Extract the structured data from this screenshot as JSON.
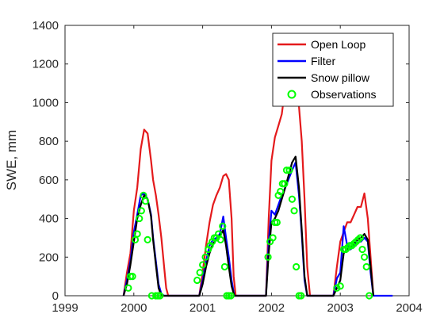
{
  "chart_data": {
    "type": "line",
    "title": "",
    "xlabel": "",
    "ylabel": "SWE, mm",
    "xlim": [
      1999,
      2004
    ],
    "ylim": [
      0,
      1400
    ],
    "xticks": [
      "1999",
      "2000",
      "2001",
      "2002",
      "2003",
      "2004"
    ],
    "yticks": [
      "0",
      "200",
      "400",
      "600",
      "800",
      "1000",
      "1200",
      "1400"
    ],
    "grid": false,
    "legend_position": "top-right",
    "series": [
      {
        "name": "Open Loop",
        "color": "#e41a1c",
        "x": [
          1999.85,
          1999.9,
          1999.95,
          2000.0,
          2000.05,
          2000.1,
          2000.15,
          2000.2,
          2000.25,
          2000.28,
          2000.32,
          2000.36,
          2000.4,
          2000.44,
          2000.47,
          2000.5,
          2000.95,
          2001.0,
          2001.05,
          2001.1,
          2001.15,
          2001.2,
          2001.25,
          2001.3,
          2001.34,
          2001.38,
          2001.42,
          2001.45,
          2001.48,
          2001.92,
          2001.96,
          2002.0,
          2002.05,
          2002.1,
          2002.15,
          2002.2,
          2002.3,
          2002.35,
          2002.4,
          2002.44,
          2002.48,
          2002.52,
          2002.56,
          2002.9,
          2002.95,
          2003.0,
          2003.05,
          2003.1,
          2003.15,
          2003.2,
          2003.25,
          2003.3,
          2003.35,
          2003.4,
          2003.44,
          2003.48
        ],
        "y": [
          0,
          120,
          220,
          440,
          560,
          760,
          860,
          840,
          700,
          600,
          520,
          420,
          300,
          150,
          40,
          0,
          0,
          120,
          260,
          380,
          470,
          520,
          560,
          620,
          630,
          600,
          400,
          100,
          0,
          0,
          400,
          700,
          820,
          880,
          940,
          1080,
          1100,
          1060,
          980,
          800,
          500,
          150,
          0,
          0,
          150,
          280,
          330,
          380,
          380,
          420,
          460,
          460,
          530,
          400,
          200,
          0
        ]
      },
      {
        "name": "Filter",
        "color": "#0000ff",
        "x": [
          1999.85,
          1999.9,
          1999.95,
          2000.0,
          2000.05,
          2000.1,
          2000.15,
          2000.2,
          2000.25,
          2000.28,
          2000.32,
          2000.36,
          2000.4,
          2000.44,
          2000.95,
          2001.0,
          2001.05,
          2001.1,
          2001.15,
          2001.2,
          2001.25,
          2001.3,
          2001.34,
          2001.38,
          2001.42,
          2001.46,
          2001.92,
          2001.96,
          2002.0,
          2002.05,
          2002.1,
          2002.15,
          2002.2,
          2002.3,
          2002.35,
          2002.4,
          2002.44,
          2002.48,
          2002.52,
          2002.9,
          2002.95,
          2003.0,
          2003.05,
          2003.1,
          2003.15,
          2003.2,
          2003.25,
          2003.3,
          2003.35,
          2003.4,
          2003.44,
          2003.48,
          2003.7,
          2003.76
        ],
        "y": [
          0,
          80,
          180,
          330,
          420,
          520,
          530,
          500,
          420,
          300,
          180,
          60,
          10,
          0,
          0,
          80,
          180,
          260,
          290,
          300,
          320,
          410,
          300,
          200,
          80,
          0,
          0,
          280,
          440,
          420,
          470,
          520,
          560,
          650,
          690,
          520,
          320,
          80,
          0,
          0,
          90,
          120,
          360,
          260,
          240,
          260,
          290,
          280,
          300,
          280,
          120,
          0,
          0,
          0
        ]
      },
      {
        "name": "Snow pillow",
        "color": "#000000",
        "x": [
          1999.85,
          1999.9,
          1999.95,
          2000.0,
          2000.05,
          2000.1,
          2000.15,
          2000.2,
          2000.25,
          2000.28,
          2000.32,
          2000.36,
          2000.4,
          2000.44,
          2000.95,
          2001.0,
          2001.05,
          2001.1,
          2001.15,
          2001.2,
          2001.25,
          2001.3,
          2001.34,
          2001.38,
          2001.42,
          2001.46,
          2001.92,
          2001.96,
          2002.0,
          2002.05,
          2002.1,
          2002.15,
          2002.2,
          2002.3,
          2002.35,
          2002.4,
          2002.44,
          2002.48,
          2002.52,
          2002.9,
          2002.95,
          2003.0,
          2003.05,
          2003.1,
          2003.15,
          2003.2,
          2003.25,
          2003.3,
          2003.35,
          2003.4,
          2003.44,
          2003.48
        ],
        "y": [
          0,
          60,
          160,
          280,
          400,
          470,
          520,
          500,
          410,
          290,
          160,
          40,
          0,
          0,
          0,
          60,
          150,
          220,
          270,
          290,
          310,
          340,
          260,
          150,
          50,
          0,
          0,
          220,
          380,
          400,
          440,
          500,
          560,
          690,
          720,
          560,
          340,
          100,
          0,
          0,
          40,
          80,
          220,
          240,
          250,
          270,
          290,
          300,
          320,
          290,
          150,
          0
        ]
      },
      {
        "name": "Observations",
        "color": "#00ff00",
        "marker": "circle",
        "x": [
          1999.92,
          1999.95,
          1999.98,
          2000.02,
          2000.05,
          2000.08,
          2000.11,
          2000.14,
          2000.17,
          2000.2,
          2000.26,
          2000.32,
          2000.35,
          2000.38,
          2000.92,
          2000.96,
          2001.0,
          2001.04,
          2001.08,
          2001.11,
          2001.14,
          2001.17,
          2001.2,
          2001.23,
          2001.26,
          2001.29,
          2001.32,
          2001.35,
          2001.38,
          2001.41,
          2001.95,
          2001.98,
          2002.02,
          2002.05,
          2002.08,
          2002.1,
          2002.13,
          2002.16,
          2002.19,
          2002.22,
          2002.26,
          2002.3,
          2002.33,
          2002.36,
          2002.4,
          2002.43,
          2002.95,
          2003.0,
          2003.05,
          2003.08,
          2003.11,
          2003.14,
          2003.17,
          2003.2,
          2003.23,
          2003.26,
          2003.29,
          2003.32,
          2003.35,
          2003.38,
          2003.42
        ],
        "y": [
          40,
          100,
          100,
          290,
          320,
          400,
          440,
          520,
          490,
          290,
          0,
          0,
          0,
          0,
          80,
          120,
          160,
          200,
          240,
          260,
          280,
          300,
          300,
          320,
          290,
          360,
          150,
          0,
          0,
          0,
          200,
          280,
          300,
          380,
          380,
          520,
          540,
          580,
          580,
          650,
          650,
          500,
          440,
          150,
          0,
          0,
          40,
          50,
          240,
          240,
          250,
          260,
          260,
          270,
          280,
          290,
          300,
          240,
          200,
          150,
          0
        ]
      }
    ]
  }
}
